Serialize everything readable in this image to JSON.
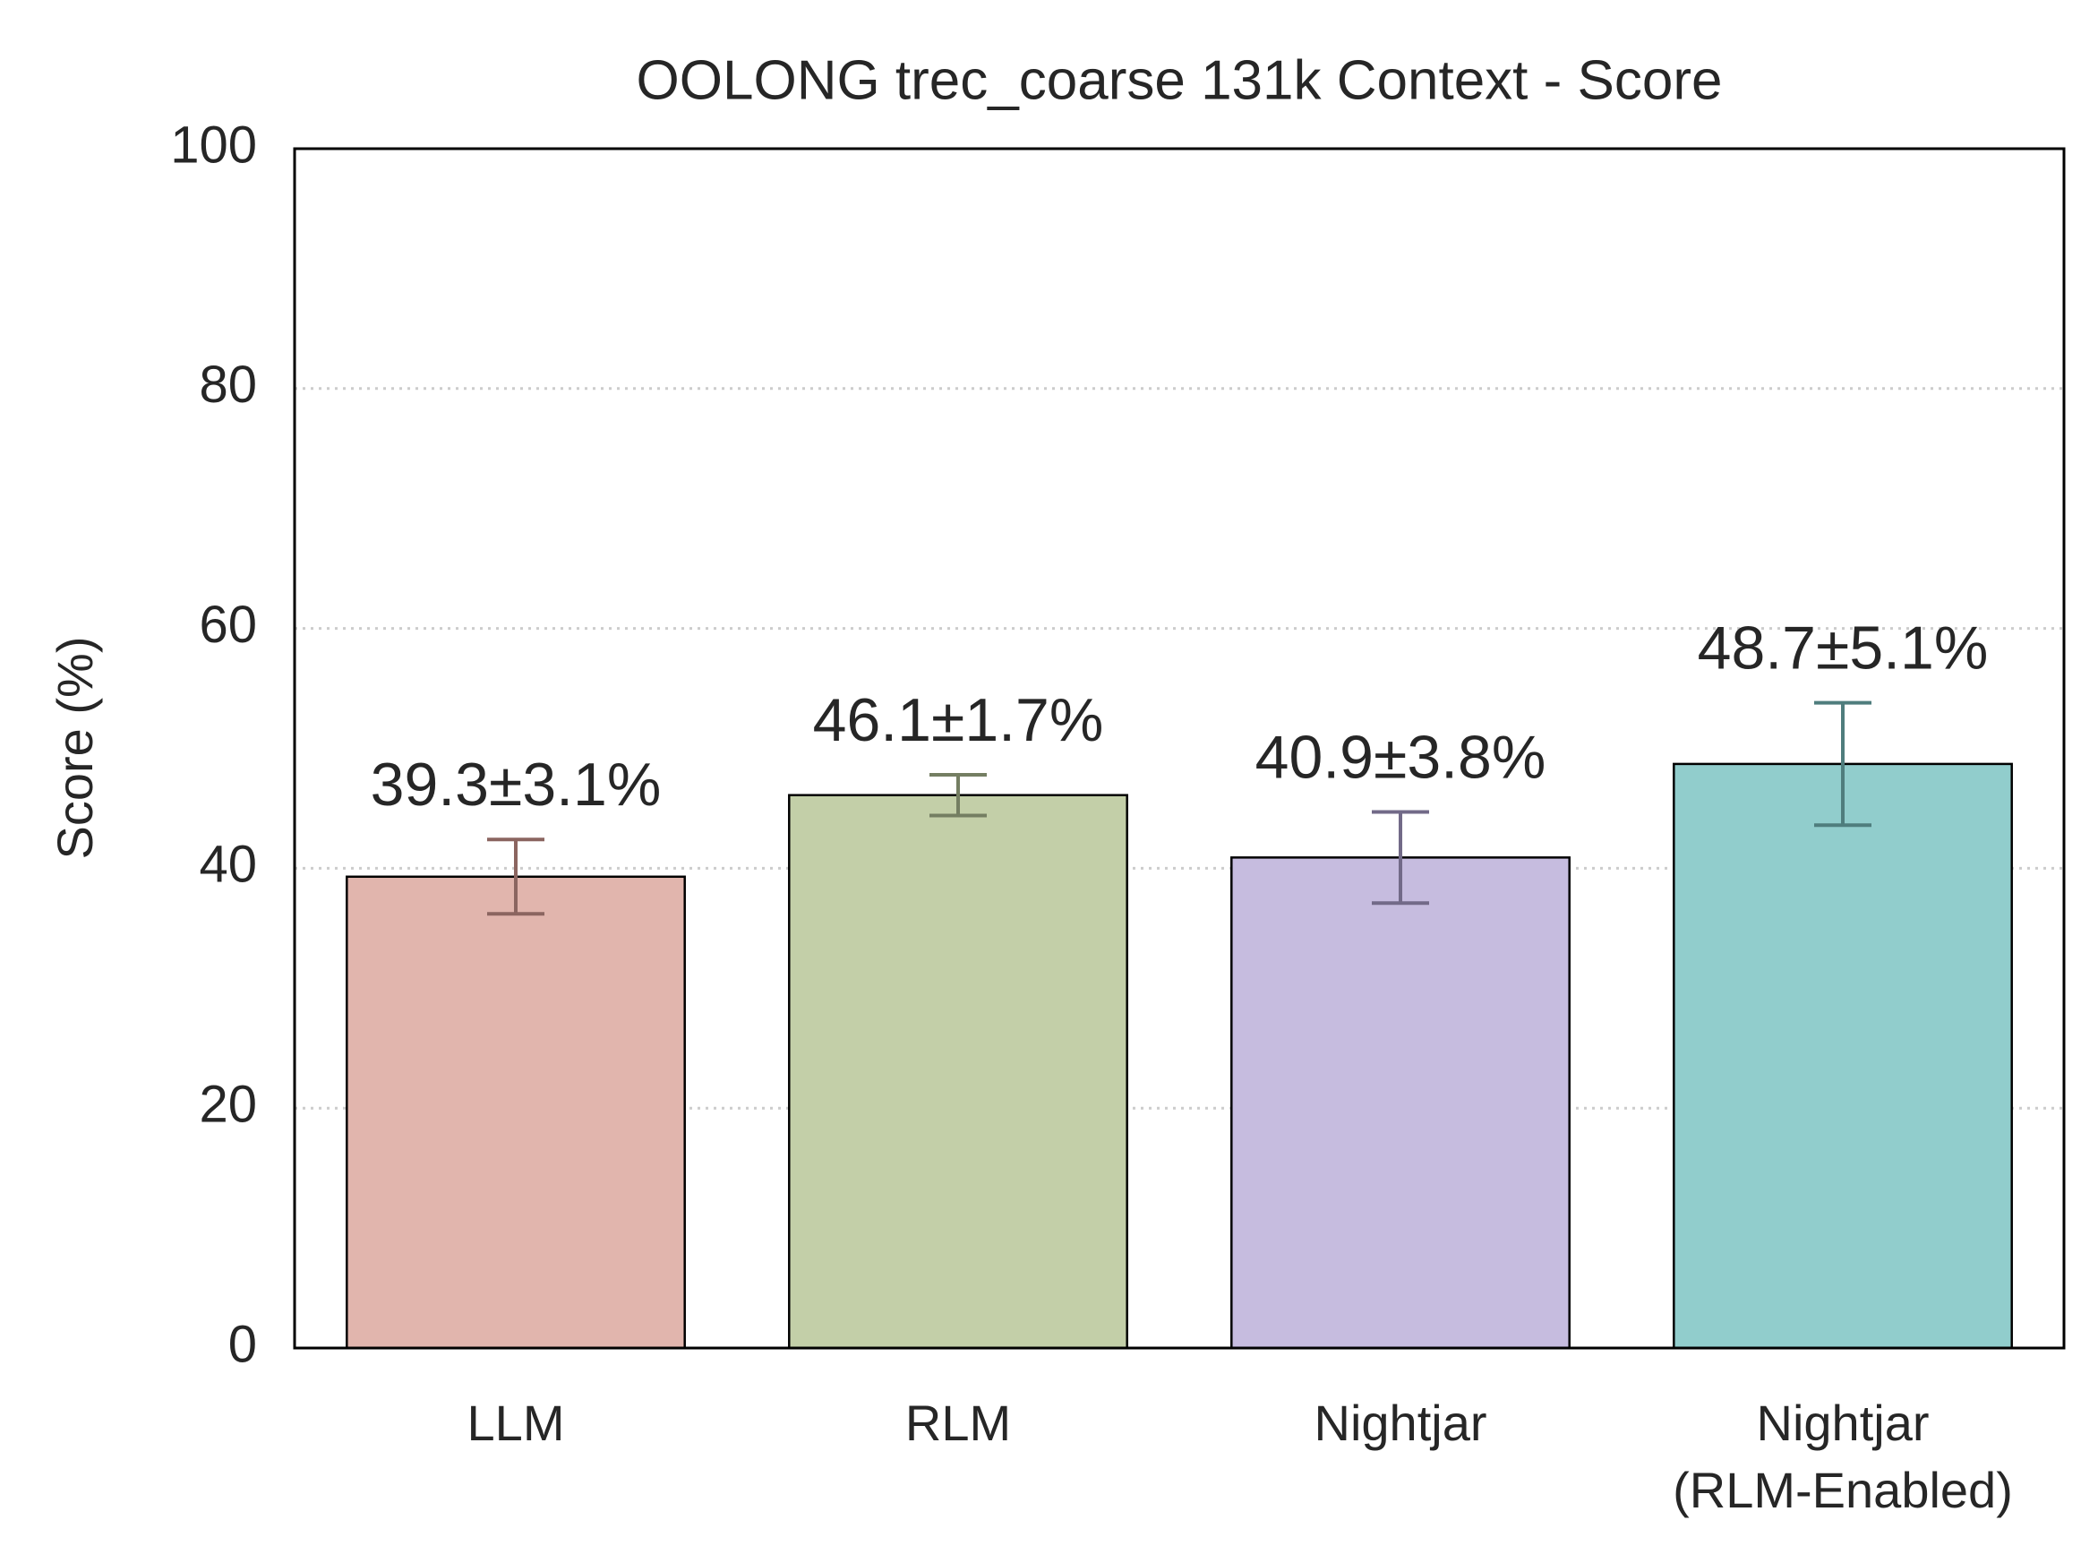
{
  "chart_data": {
    "type": "bar",
    "title": "OOLONG trec_coarse 131k Context - Score",
    "y_label": "Score (%)",
    "categories": [
      "LLM",
      "RLM",
      "Nightjar",
      "Nightjar\n(RLM-Enabled)"
    ],
    "values": [
      39.3,
      46.1,
      40.9,
      48.7
    ],
    "errors": [
      3.1,
      1.7,
      3.8,
      5.1
    ],
    "value_labels": [
      "39.3±3.1%",
      "46.1±1.7%",
      "40.9±3.8%",
      "48.7±5.1%"
    ],
    "colors": [
      "#e1b5ad",
      "#c3cfa8",
      "#c6bcdf",
      "#91cdcc"
    ],
    "error_colors": [
      "#8b6560",
      "#747e62",
      "#726a88",
      "#4f7d7d"
    ],
    "ylim": [
      0,
      100
    ],
    "yticks": [
      0,
      20,
      40,
      60,
      80,
      100
    ],
    "grid": true
  }
}
